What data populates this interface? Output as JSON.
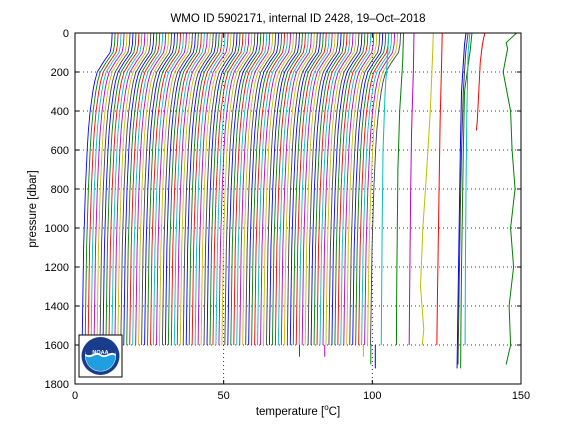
{
  "chart_data": {
    "type": "line",
    "title": "WMO ID 5902171, internal ID 2428, 19–Oct–2018",
    "xlabel_prefix": "temperature [",
    "xlabel_unit": "o",
    "xlabel_suffix": "C]",
    "ylabel": "pressure [dbar]",
    "xlim": [
      0,
      150
    ],
    "ylim": [
      0,
      1800
    ],
    "y_reversed": true,
    "xticks": [
      0,
      50,
      100,
      150
    ],
    "yticks": [
      0,
      200,
      400,
      600,
      800,
      1000,
      1200,
      1400,
      1600,
      1800
    ],
    "grid": "dotted",
    "logo": "NOAA",
    "colors": [
      "#0000ff",
      "#008000",
      "#ff0000",
      "#00bfbf",
      "#bf00bf",
      "#bfbf00",
      "#404040"
    ],
    "profile_count": 98,
    "profile_offset_step": 1.0,
    "base_profile": {
      "pressure": [
        0,
        30,
        60,
        100,
        150,
        200,
        250,
        300,
        400,
        500,
        600,
        700,
        800,
        900,
        1000,
        1100,
        1200,
        1300,
        1400,
        1500,
        1600
      ],
      "temperature": [
        12.5,
        12.4,
        12.3,
        11.8,
        9.5,
        7.5,
        6.6,
        6.0,
        5.1,
        4.5,
        4.1,
        3.8,
        3.5,
        3.3,
        3.1,
        2.9,
        2.8,
        2.7,
        2.6,
        2.5,
        2.4
      ]
    },
    "extra_profiles": [
      {
        "color": "#00bfbf",
        "pressure": [
          0,
          100,
          300,
          600,
          1000,
          1400,
          1600
        ],
        "temperature": [
          105.5,
          105.2,
          104.3,
          103.6,
          103.3,
          103.1,
          103.0
        ]
      },
      {
        "color": "#008000",
        "pressure": [
          0,
          150,
          400,
          700,
          1000,
          1300,
          1600
        ],
        "temperature": [
          110.5,
          110.2,
          109.2,
          108.6,
          108.4,
          108.2,
          108.1
        ]
      },
      {
        "color": "#bf00bf",
        "pressure": [
          0,
          200,
          500,
          800,
          1100,
          1400,
          1600
        ],
        "temperature": [
          114.0,
          113.8,
          113.2,
          112.9,
          112.7,
          112.5,
          112.4
        ]
      },
      {
        "color": "#bfbf00",
        "pressure": [
          0,
          100,
          400,
          700,
          1000,
          1300,
          1520,
          1600
        ],
        "temperature": [
          120.5,
          120.3,
          119.5,
          118.3,
          117.0,
          116.2,
          117.3,
          116.8
        ]
      },
      {
        "color": "#ff0000",
        "pressure": [
          0,
          150,
          450,
          750,
          1050,
          1350,
          1600
        ],
        "temperature": [
          123.5,
          123.3,
          122.8,
          122.5,
          122.2,
          121.9,
          121.7
        ]
      },
      {
        "color": "#0000ff",
        "pressure": [
          0,
          60,
          300,
          600,
          900,
          1200,
          1500,
          1720
        ],
        "temperature": [
          131.5,
          131.0,
          130.0,
          129.6,
          129.3,
          129.0,
          128.7,
          128.5
        ]
      },
      {
        "color": "#008000",
        "pressure": [
          0,
          80,
          300,
          600,
          900,
          1200,
          1500,
          1720
        ],
        "temperature": [
          133.5,
          133.0,
          131.0,
          130.6,
          130.3,
          130.0,
          129.8,
          129.7
        ]
      },
      {
        "color": "#00bfbf",
        "pressure": [
          0,
          100,
          400,
          800,
          1200,
          1600
        ],
        "temperature": [
          132.8,
          132.2,
          131.8,
          131.5,
          131.3,
          131.2
        ]
      },
      {
        "color": "#404040",
        "pressure": [
          0,
          100,
          300,
          600,
          900,
          1200,
          1500,
          1700
        ],
        "temperature": [
          132.2,
          131.4,
          130.6,
          130.0,
          129.6,
          129.3,
          129.0,
          128.8
        ]
      },
      {
        "color": "#ff0000",
        "pressure": [
          0,
          60,
          150,
          300,
          450,
          500
        ],
        "temperature": [
          137.8,
          137.0,
          136.3,
          135.8,
          135.3,
          135.0
        ]
      },
      {
        "color": "#008000",
        "pressure": [
          0,
          50,
          80,
          200,
          400,
          600,
          800,
          1000,
          1200,
          1400,
          1600,
          1700
        ],
        "temperature": [
          148.5,
          145.0,
          145.5,
          144.0,
          146.5,
          147.0,
          148.0,
          146.5,
          147.5,
          146.0,
          146.5,
          145.0
        ]
      }
    ],
    "stub_profiles": [
      {
        "color": "#ff0000",
        "x": 75.5,
        "from": 1600,
        "to": 1660
      },
      {
        "color": "#bf00bf",
        "x": 84.0,
        "from": 1600,
        "to": 1660
      },
      {
        "color": "#bfbf00",
        "x": 97.0,
        "from": 1600,
        "to": 1660
      },
      {
        "color": "#0000ff",
        "x": 101.0,
        "from": 1600,
        "to": 1720
      },
      {
        "color": "#008000",
        "x": 99.5,
        "from": 1600,
        "to": 1700
      }
    ]
  }
}
